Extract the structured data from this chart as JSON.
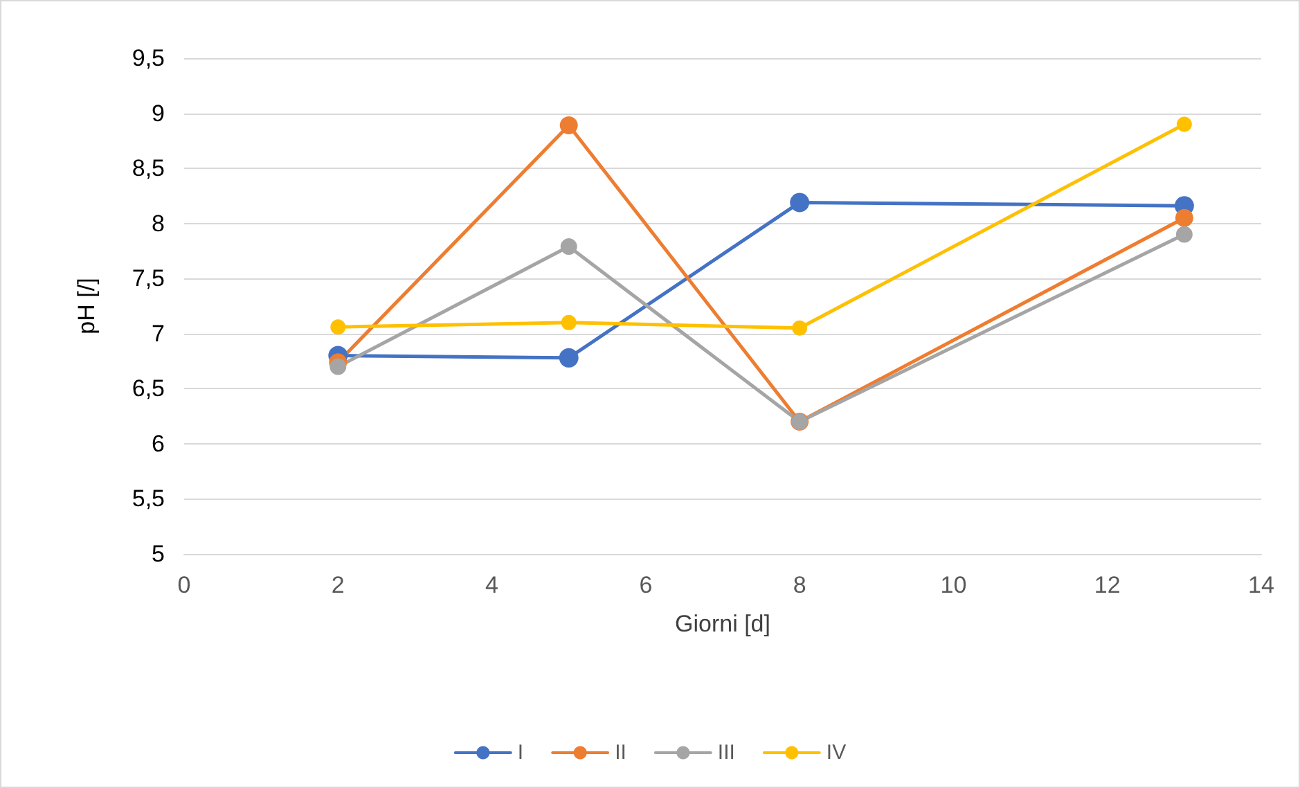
{
  "chart_data": {
    "type": "line",
    "xlabel": "Giorni [d]",
    "ylabel": "pH [/]",
    "xlim": [
      0,
      14
    ],
    "xticks": [
      0,
      2,
      4,
      6,
      8,
      10,
      12,
      14
    ],
    "ylim": [
      5,
      9.5
    ],
    "yticks": [
      5,
      {
        "value": 5.5,
        "label": "5,5"
      },
      6,
      {
        "value": 6.5,
        "label": "6,5"
      },
      7,
      {
        "value": 7.5,
        "label": "7,5"
      },
      8,
      {
        "value": 8.5,
        "label": "8,5"
      },
      9,
      {
        "value": 9.5,
        "label": "9,5"
      }
    ],
    "x": [
      2,
      5,
      8,
      13
    ],
    "series": [
      {
        "name": "I",
        "color": "#4472c4",
        "values": [
          6.8,
          6.78,
          8.19,
          8.16
        ]
      },
      {
        "name": "II",
        "color": "#ed7d31",
        "values": [
          6.74,
          8.89,
          6.2,
          8.05
        ]
      },
      {
        "name": "III",
        "color": "#a5a5a5",
        "values": [
          6.7,
          7.79,
          6.2,
          7.9
        ]
      },
      {
        "name": "IV",
        "color": "#ffc000",
        "values": [
          7.06,
          7.1,
          7.05,
          8.9
        ]
      }
    ],
    "grid": "y",
    "legend": "bottom",
    "marker": "circle",
    "line_style": "solid"
  }
}
